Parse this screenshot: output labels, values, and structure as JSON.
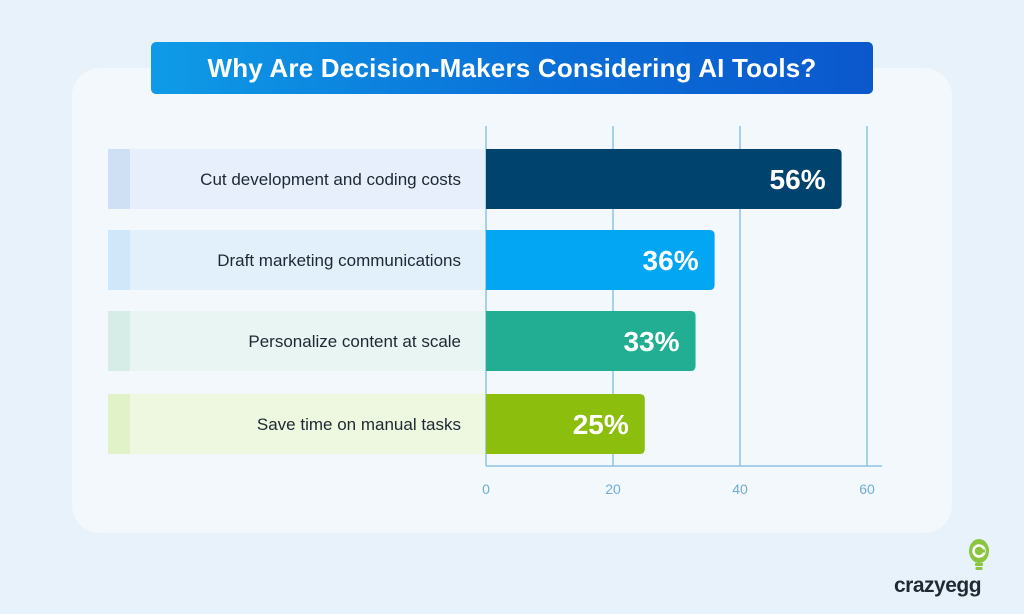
{
  "chart_data": {
    "type": "bar",
    "orientation": "horizontal",
    "title": "Why Are Decision-Makers Considering AI Tools?",
    "categories": [
      "Cut development and coding costs",
      "Draft marketing communications",
      "Personalize content at scale",
      "Save time on manual tasks"
    ],
    "values": [
      56,
      36,
      33,
      25
    ],
    "value_labels": [
      "56%",
      "36%",
      "33%",
      "25%"
    ],
    "bar_colors": [
      "#00436e",
      "#03a6f2",
      "#21ae93",
      "#8bbe0d"
    ],
    "row_colors": [
      "#e6effb",
      "#e2f0fb",
      "#e8f5f3",
      "#eef7df"
    ],
    "accent_colors": [
      "#cfe0f5",
      "#cfe7f8",
      "#d5ece7",
      "#e2f2c8"
    ],
    "xlim": [
      0,
      60
    ],
    "xticks": [
      0,
      20,
      40,
      60
    ],
    "xtick_labels": [
      "0",
      "20",
      "40",
      "60"
    ],
    "grid": true,
    "gridline_color": "#8ec3e4"
  },
  "branding": {
    "logo_text": "crazyegg",
    "logo_icon": "egg-lightbulb-icon",
    "logo_color": "#8bc53f"
  }
}
